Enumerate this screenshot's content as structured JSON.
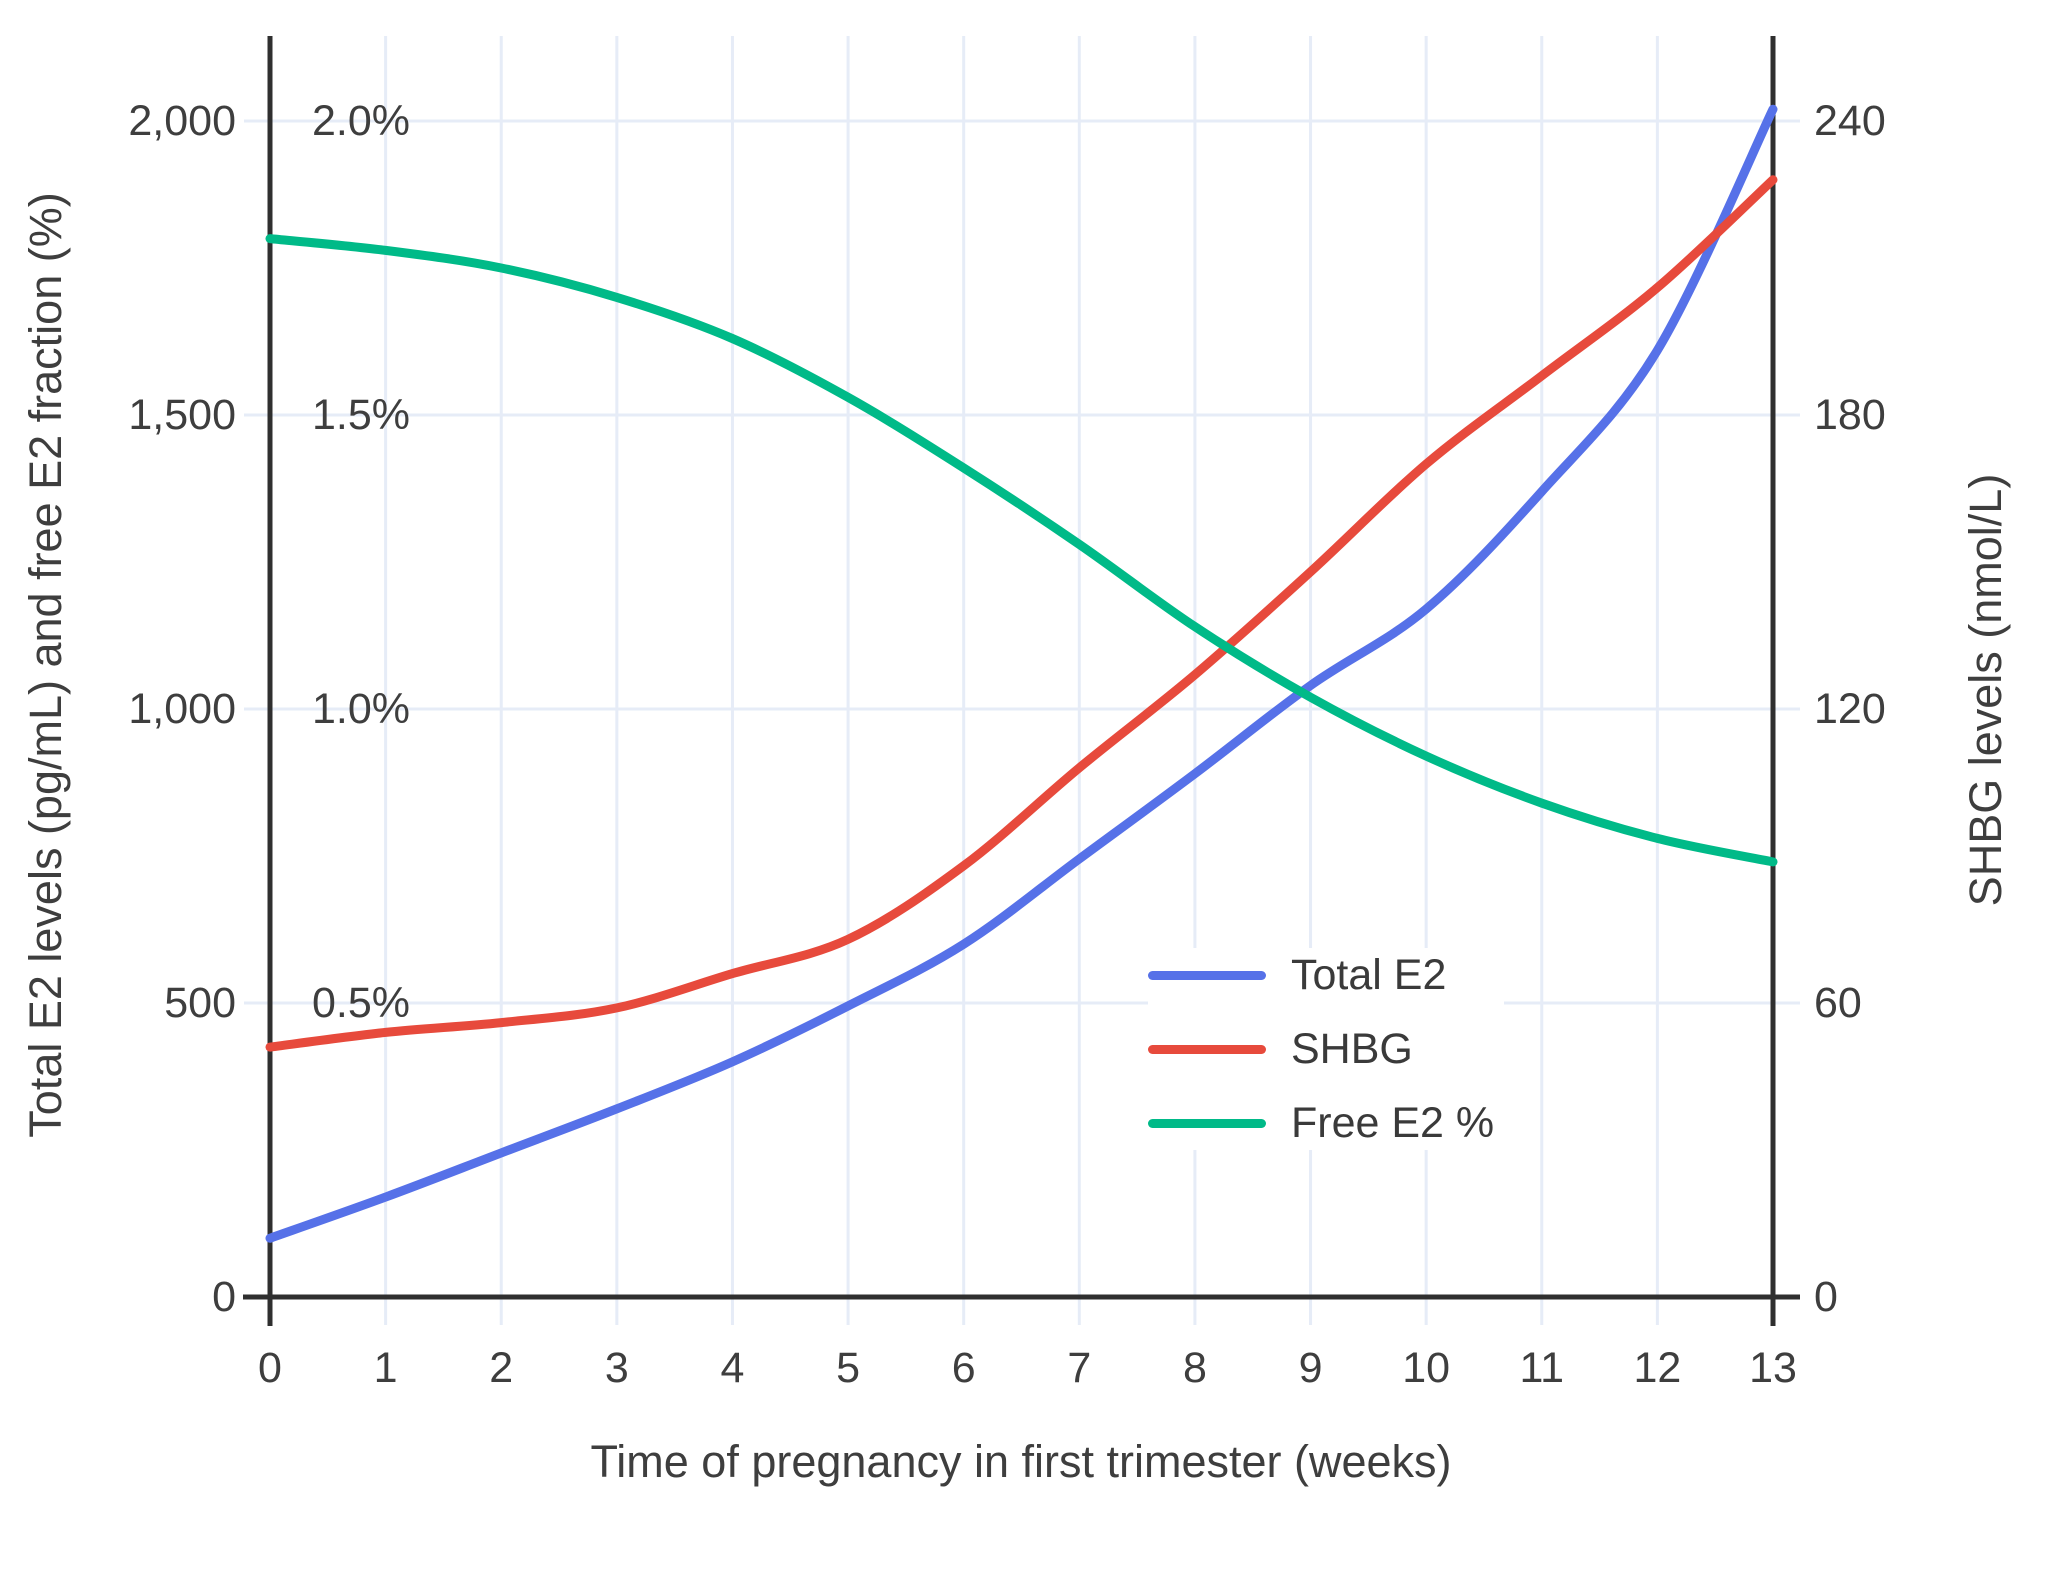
{
  "chart_data": {
    "type": "line",
    "title": "",
    "xlabel": "Time of pregnancy in first trimester (weeks)",
    "ylabel_left": "Total E2 levels (pg/mL) and free E2 fraction (%)",
    "ylabel_right": "SHBG levels (nmol/L)",
    "x": [
      0,
      1,
      2,
      3,
      4,
      5,
      6,
      7,
      8,
      9,
      10,
      11,
      12,
      13
    ],
    "series": [
      {
        "name": "Total E2",
        "axis": "left",
        "unit": "pg/mL",
        "color": "#5671e8",
        "values": [
          100,
          170,
          245,
          320,
          400,
          495,
          600,
          745,
          890,
          1040,
          1170,
          1370,
          1610,
          2020
        ]
      },
      {
        "name": "SHBG",
        "axis": "right",
        "unit": "nmol/L",
        "color": "#e74a3c",
        "values": [
          51,
          54,
          56,
          59,
          66,
          73,
          88,
          108,
          127,
          148,
          170,
          188,
          206,
          228
        ]
      },
      {
        "name": "Free E2 %",
        "axis": "percent",
        "unit": "%",
        "color": "#00ba88",
        "values": [
          1.8,
          1.78,
          1.75,
          1.7,
          1.63,
          1.53,
          1.41,
          1.28,
          1.14,
          1.02,
          0.92,
          0.84,
          0.78,
          0.74
        ]
      }
    ],
    "axes": {
      "x": {
        "ticks": [
          "0",
          "1",
          "2",
          "3",
          "4",
          "5",
          "6",
          "7",
          "8",
          "9",
          "10",
          "11",
          "12",
          "13"
        ],
        "values": [
          0,
          1,
          2,
          3,
          4,
          5,
          6,
          7,
          8,
          9,
          10,
          11,
          12,
          13
        ],
        "range": [
          0,
          13
        ]
      },
      "left": {
        "ticks": [
          "0",
          "500",
          "1,000",
          "1,500",
          "2,000"
        ],
        "values": [
          0,
          500,
          1000,
          1500,
          2000
        ],
        "range": [
          0,
          2000
        ]
      },
      "left_inner_percent": {
        "ticks": [
          "0.5%",
          "1.0%",
          "1.5%",
          "2.0%"
        ],
        "values": [
          0.5,
          1.0,
          1.5,
          2.0
        ],
        "range": [
          0,
          2.0
        ]
      },
      "right": {
        "ticks": [
          "0",
          "60",
          "120",
          "180",
          "240"
        ],
        "values": [
          0,
          60,
          120,
          180,
          240
        ],
        "range": [
          0,
          240
        ]
      }
    },
    "legend": {
      "position": "inside-lower-right",
      "entries": [
        "Total E2",
        "SHBG",
        "Free E2 %"
      ]
    },
    "grid": true
  },
  "colors": {
    "total_e2": "#5671e8",
    "shbg": "#e74a3c",
    "free_e2": "#00ba88",
    "gridline": "#e6ecf7",
    "axis_line": "#2f2f2f",
    "tick_text": "#3e3e3e"
  }
}
